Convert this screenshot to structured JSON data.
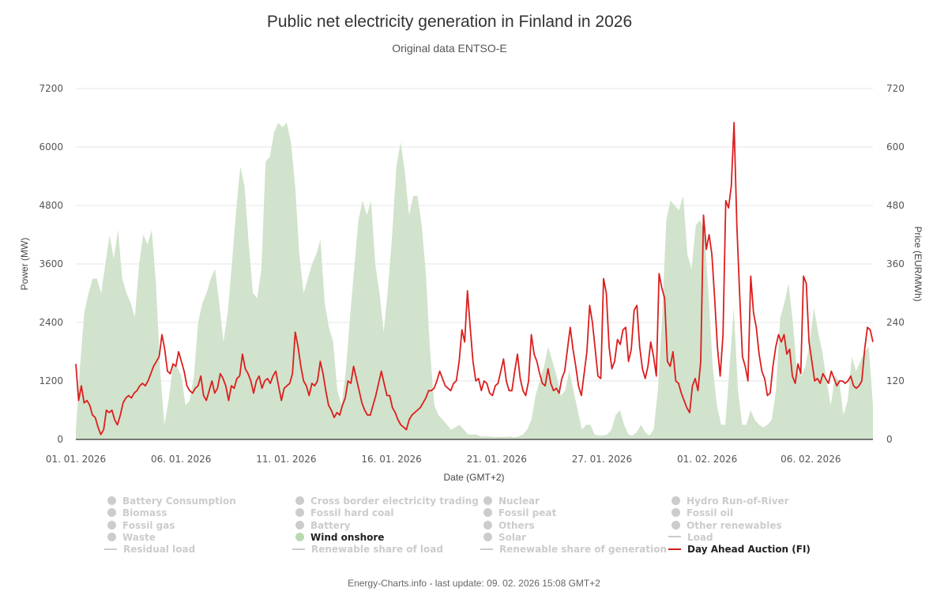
{
  "header": {
    "title": "Public net electricity generation in Finland in 2026",
    "subtitle": "Original data ENTSO-E"
  },
  "footer": {
    "text": "Energy-Charts.info - last update: 09. 02. 2026 15:08 GMT+2"
  },
  "colors": {
    "wind_fill": "#d1e3cc",
    "price_line": "#dc1e1e",
    "grid": "#e6e6e6",
    "axis_line": "#777777",
    "legend_inactive": "#cccccc",
    "legend_active_text": "#222222"
  },
  "legend": {
    "items": [
      {
        "label": "Battery Consumption",
        "marker": "dot",
        "active": false
      },
      {
        "label": "Biomass",
        "marker": "dot",
        "active": false
      },
      {
        "label": "Fossil gas",
        "marker": "dot",
        "active": false
      },
      {
        "label": "Waste",
        "marker": "dot",
        "active": false
      },
      {
        "label": "Residual load",
        "marker": "line",
        "active": false
      },
      {
        "label": "Cross border electricity trading",
        "marker": "dot",
        "active": false
      },
      {
        "label": "Fossil hard coal",
        "marker": "dot",
        "active": false
      },
      {
        "label": "Battery",
        "marker": "dot",
        "active": false
      },
      {
        "label": "Wind onshore",
        "marker": "dot",
        "active": true,
        "color": "#b9d9b2"
      },
      {
        "label": "Renewable share of load",
        "marker": "line",
        "active": false
      },
      {
        "label": "Nuclear",
        "marker": "dot",
        "active": false
      },
      {
        "label": "Fossil peat",
        "marker": "dot",
        "active": false
      },
      {
        "label": "Others",
        "marker": "dot",
        "active": false
      },
      {
        "label": "Solar",
        "marker": "dot",
        "active": false
      },
      {
        "label": "Renewable share of generation",
        "marker": "line",
        "active": false
      },
      {
        "label": "Hydro Run-of-River",
        "marker": "dot",
        "active": false
      },
      {
        "label": "Fossil oil",
        "marker": "dot",
        "active": false
      },
      {
        "label": "Other renewables",
        "marker": "dot",
        "active": false
      },
      {
        "label": "Load",
        "marker": "line",
        "active": false
      },
      {
        "label": "Day Ahead Auction (FI)",
        "marker": "line",
        "active": true,
        "color": "#c81e1e"
      }
    ]
  },
  "chart_data": {
    "type": "area",
    "title": "Public net electricity generation in Finland in 2026",
    "subtitle": "Original data ENTSO-E",
    "xlabel": "Date (GMT+2)",
    "ylabel": "Power (MW)",
    "y2label": "Price (EUR/MWh)",
    "ylim": [
      0,
      7200
    ],
    "y2lim": [
      0,
      720
    ],
    "yticks": [
      "0",
      "1200",
      "2400",
      "3600",
      "4800",
      "6000",
      "7200"
    ],
    "y2ticks": [
      "0",
      "120",
      "240",
      "360",
      "480",
      "600",
      "720"
    ],
    "xticks": [
      {
        "label": "01. 01. 2026",
        "pos": 0.0
      },
      {
        "label": "06. 01. 2026",
        "pos": 0.132
      },
      {
        "label": "11. 01. 2026",
        "pos": 0.264
      },
      {
        "label": "16. 01. 2026",
        "pos": 0.396
      },
      {
        "label": "21. 01. 2026",
        "pos": 0.528
      },
      {
        "label": "27. 01. 2026",
        "pos": 0.66
      },
      {
        "label": "01. 02. 2026",
        "pos": 0.792
      },
      {
        "label": "06. 02. 2026",
        "pos": 0.922
      }
    ],
    "grid": true,
    "legend_position": "bottom",
    "x_start": "01. 01. 2026",
    "x_end": "09. 02. 2026",
    "series": [
      {
        "name": "Wind onshore",
        "type": "area",
        "axis": "left",
        "unit": "MW",
        "values": [
          200,
          1500,
          2600,
          3000,
          3300,
          3300,
          3000,
          3600,
          4200,
          3700,
          4300,
          3300,
          3000,
          2800,
          2500,
          3600,
          4200,
          4000,
          4300,
          3200,
          1400,
          300,
          800,
          1500,
          1500,
          1300,
          700,
          800,
          1300,
          2400,
          2800,
          3000,
          3300,
          3500,
          2800,
          2000,
          2600,
          3600,
          4700,
          5600,
          5200,
          4000,
          3000,
          2900,
          3500,
          5700,
          5800,
          6300,
          6500,
          6400,
          6500,
          6100,
          5200,
          3800,
          3000,
          3300,
          3600,
          3800,
          4100,
          2800,
          2300,
          2000,
          1000,
          700,
          1400,
          2500,
          3500,
          4500,
          4900,
          4600,
          4900,
          3600,
          3000,
          2200,
          3100,
          4200,
          5600,
          6100,
          5500,
          4600,
          5000,
          5000,
          4400,
          3400,
          1800,
          700,
          500,
          400,
          300,
          200,
          250,
          300,
          200,
          100,
          100,
          100,
          60,
          60,
          60,
          50,
          50,
          50,
          50,
          60,
          40,
          60,
          100,
          200,
          400,
          900,
          1200,
          1500,
          1900,
          1600,
          1300,
          900,
          1000,
          1400,
          1000,
          600,
          200,
          300,
          300,
          100,
          80,
          80,
          100,
          200,
          500,
          600,
          300,
          100,
          80,
          150,
          300,
          150,
          80,
          200,
          1000,
          2500,
          4500,
          4900,
          4800,
          4700,
          5000,
          3800,
          3500,
          4400,
          4500,
          4300,
          3000,
          1500,
          700,
          300,
          300,
          1500,
          2700,
          1000,
          300,
          300,
          600,
          400,
          300,
          250,
          300,
          400,
          1000,
          2500,
          2800,
          3200,
          2400,
          1400,
          1300,
          1500,
          2000,
          2700,
          2200,
          1800,
          1200,
          700,
          1300,
          1200,
          500,
          800,
          1700,
          1400,
          1600,
          1800,
          1900,
          700
        ]
      },
      {
        "name": "Day Ahead Auction (FI)",
        "type": "line",
        "axis": "right",
        "unit": "EUR/MWh",
        "values": [
          155,
          80,
          110,
          75,
          80,
          70,
          50,
          45,
          25,
          10,
          20,
          60,
          55,
          60,
          40,
          30,
          50,
          75,
          85,
          90,
          85,
          95,
          100,
          110,
          115,
          110,
          120,
          135,
          150,
          160,
          170,
          215,
          185,
          140,
          135,
          155,
          150,
          180,
          160,
          140,
          110,
          100,
          95,
          105,
          110,
          130,
          90,
          80,
          100,
          120,
          95,
          105,
          135,
          125,
          110,
          80,
          110,
          105,
          125,
          130,
          175,
          145,
          135,
          120,
          95,
          120,
          130,
          105,
          120,
          125,
          115,
          130,
          140,
          110,
          80,
          105,
          110,
          115,
          135,
          220,
          190,
          150,
          120,
          110,
          90,
          115,
          110,
          120,
          160,
          135,
          100,
          70,
          60,
          45,
          55,
          50,
          70,
          85,
          120,
          115,
          150,
          125,
          100,
          75,
          60,
          50,
          50,
          70,
          90,
          115,
          140,
          115,
          90,
          90,
          65,
          55,
          40,
          30,
          25,
          20,
          40,
          50,
          55,
          60,
          65,
          75,
          85,
          100,
          100,
          105,
          120,
          140,
          125,
          110,
          105,
          100,
          115,
          120,
          160,
          225,
          200,
          305,
          230,
          160,
          120,
          125,
          100,
          120,
          115,
          95,
          90,
          110,
          115,
          140,
          165,
          120,
          100,
          100,
          140,
          175,
          125,
          100,
          90,
          120,
          215,
          175,
          160,
          135,
          115,
          110,
          145,
          115,
          100,
          105,
          95,
          125,
          140,
          185,
          230,
          185,
          150,
          110,
          90,
          135,
          180,
          275,
          240,
          185,
          130,
          125,
          330,
          300,
          190,
          145,
          160,
          205,
          195,
          225,
          230,
          160,
          185,
          265,
          275,
          190,
          145,
          125,
          150,
          200,
          170,
          130,
          340,
          310,
          290,
          160,
          150,
          180,
          120,
          115,
          95,
          80,
          65,
          55,
          110,
          125,
          100,
          160,
          460,
          390,
          420,
          380,
          290,
          190,
          130,
          215,
          490,
          475,
          520,
          650,
          440,
          300,
          170,
          150,
          120,
          335,
          260,
          230,
          175,
          140,
          125,
          90,
          95,
          150,
          190,
          215,
          200,
          215,
          175,
          185,
          130,
          115,
          155,
          135,
          335,
          320,
          200,
          160,
          120,
          125,
          115,
          135,
          125,
          115,
          140,
          125,
          110,
          120,
          120,
          115,
          120,
          130,
          110,
          105,
          110,
          120,
          185,
          230,
          225,
          200
        ]
      }
    ]
  }
}
